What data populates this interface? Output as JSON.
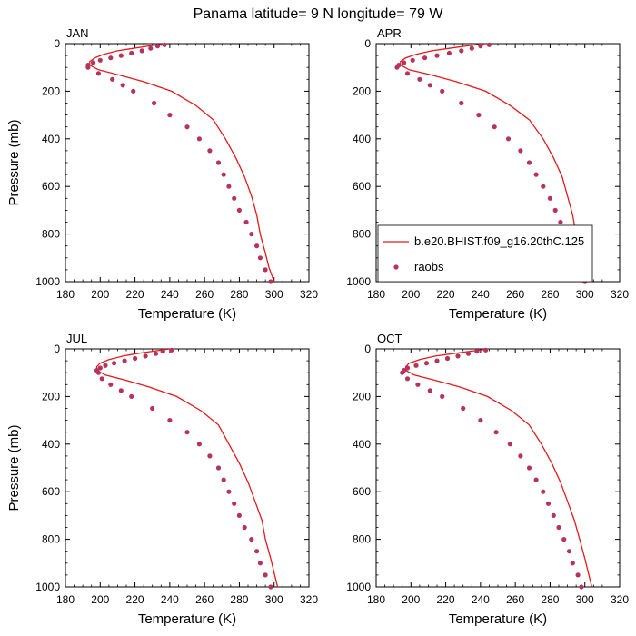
{
  "figure_title": "Panama  latitude= 9 N longitude= 79 W",
  "colors": {
    "model": "#e31a1c",
    "obs": "#b5345f",
    "frame": "#000000"
  },
  "chart_data": [
    {
      "type": "line",
      "panel": "JAN",
      "title": "JAN",
      "xlabel": "Temperature (K)",
      "ylabel": "Pressure (mb)",
      "xlim": [
        180,
        320
      ],
      "ylim": [
        1000,
        0
      ],
      "xticks": [
        180,
        200,
        220,
        240,
        260,
        280,
        300,
        320
      ],
      "yticks": [
        0,
        200,
        400,
        600,
        800,
        1000
      ],
      "legend": null,
      "series": [
        {
          "name": "b.e20.BHIST.f09_g16.20thC.125",
          "style": "line",
          "points": [
            [
              238,
              0
            ],
            [
              228,
              10
            ],
            [
              219,
              20
            ],
            [
              210,
              30
            ],
            [
              202,
              45
            ],
            [
              197,
              60
            ],
            [
              194,
              75
            ],
            [
              194,
              90
            ],
            [
              199,
              110
            ],
            [
              210,
              130
            ],
            [
              225,
              160
            ],
            [
              241,
              200
            ],
            [
              255,
              260
            ],
            [
              265,
              320
            ],
            [
              272,
              400
            ],
            [
              278,
              480
            ],
            [
              283,
              560
            ],
            [
              287,
              640
            ],
            [
              290,
              720
            ],
            [
              292,
              800
            ],
            [
              295,
              880
            ],
            [
              297,
              940
            ],
            [
              300,
              1000
            ]
          ]
        },
        {
          "name": "raobs",
          "style": "markers",
          "points": [
            [
              237,
              5
            ],
            [
              233,
              10
            ],
            [
              229,
              20
            ],
            [
              224,
              30
            ],
            [
              218,
              40
            ],
            [
              212,
              50
            ],
            [
              206,
              60
            ],
            [
              200,
              70
            ],
            [
              196,
              80
            ],
            [
              193,
              90
            ],
            [
              193,
              100
            ],
            [
              199,
              125
            ],
            [
              207,
              150
            ],
            [
              213,
              175
            ],
            [
              219,
              200
            ],
            [
              231,
              250
            ],
            [
              240,
              300
            ],
            [
              250,
              350
            ],
            [
              257,
              400
            ],
            [
              263,
              450
            ],
            [
              268,
              500
            ],
            [
              271,
              550
            ],
            [
              274,
              600
            ],
            [
              277,
              650
            ],
            [
              280,
              700
            ],
            [
              284,
              750
            ],
            [
              287,
              800
            ],
            [
              290,
              850
            ],
            [
              292,
              900
            ],
            [
              295,
              950
            ],
            [
              298,
              1000
            ]
          ]
        }
      ]
    },
    {
      "type": "line",
      "panel": "APR",
      "title": "APR",
      "xlabel": "Temperature (K)",
      "ylabel": "",
      "xlim": [
        180,
        320
      ],
      "ylim": [
        1000,
        0
      ],
      "xticks": [
        180,
        200,
        220,
        240,
        260,
        280,
        300,
        320
      ],
      "yticks": [
        0,
        200,
        400,
        600,
        800,
        1000
      ],
      "legend": [
        {
          "label": "b.e20.BHIST.f09_g16.20thC.125",
          "style": "line"
        },
        {
          "label": "raobs",
          "style": "markers"
        }
      ],
      "series": [
        {
          "name": "b.e20.BHIST.f09_g16.20thC.125",
          "style": "line",
          "points": [
            [
              243,
              0
            ],
            [
              232,
              10
            ],
            [
              222,
              20
            ],
            [
              212,
              30
            ],
            [
              203,
              45
            ],
            [
              197,
              60
            ],
            [
              194,
              75
            ],
            [
              194,
              90
            ],
            [
              199,
              110
            ],
            [
              211,
              130
            ],
            [
              226,
              160
            ],
            [
              243,
              200
            ],
            [
              257,
              260
            ],
            [
              268,
              320
            ],
            [
              276,
              400
            ],
            [
              282,
              480
            ],
            [
              287,
              560
            ],
            [
              290,
              640
            ],
            [
              293,
              720
            ],
            [
              295,
              800
            ],
            [
              298,
              880
            ],
            [
              300,
              940
            ],
            [
              303,
              1000
            ]
          ]
        },
        {
          "name": "raobs",
          "style": "markers",
          "points": [
            [
              245,
              5
            ],
            [
              240,
              10
            ],
            [
              235,
              20
            ],
            [
              229,
              30
            ],
            [
              222,
              40
            ],
            [
              215,
              50
            ],
            [
              208,
              60
            ],
            [
              201,
              70
            ],
            [
              196,
              80
            ],
            [
              193,
              90
            ],
            [
              192,
              100
            ],
            [
              198,
              125
            ],
            [
              205,
              150
            ],
            [
              211,
              175
            ],
            [
              218,
              200
            ],
            [
              229,
              250
            ],
            [
              239,
              300
            ],
            [
              248,
              350
            ],
            [
              256,
              400
            ],
            [
              263,
              450
            ],
            [
              268,
              500
            ],
            [
              272,
              550
            ],
            [
              276,
              600
            ],
            [
              280,
              650
            ],
            [
              283,
              700
            ],
            [
              286,
              750
            ],
            [
              289,
              800
            ],
            [
              292,
              850
            ],
            [
              295,
              900
            ],
            [
              297,
              950
            ],
            [
              300,
              1000
            ]
          ]
        }
      ]
    },
    {
      "type": "line",
      "panel": "JUL",
      "title": "JUL",
      "xlabel": "Temperature (K)",
      "ylabel": "Pressure (mb)",
      "xlim": [
        180,
        320
      ],
      "ylim": [
        1000,
        0
      ],
      "xticks": [
        180,
        200,
        220,
        240,
        260,
        280,
        300,
        320
      ],
      "yticks": [
        0,
        200,
        400,
        600,
        800,
        1000
      ],
      "legend": null,
      "series": [
        {
          "name": "b.e20.BHIST.f09_g16.20thC.125",
          "style": "line",
          "points": [
            [
              240,
              0
            ],
            [
              230,
              10
            ],
            [
              221,
              20
            ],
            [
              213,
              30
            ],
            [
              205,
              45
            ],
            [
              200,
              60
            ],
            [
              198,
              75
            ],
            [
              198,
              90
            ],
            [
              203,
              110
            ],
            [
              214,
              130
            ],
            [
              228,
              160
            ],
            [
              244,
              200
            ],
            [
              258,
              260
            ],
            [
              268,
              320
            ],
            [
              274,
              400
            ],
            [
              280,
              480
            ],
            [
              285,
              560
            ],
            [
              289,
              640
            ],
            [
              293,
              720
            ],
            [
              295,
              800
            ],
            [
              298,
              880
            ],
            [
              300,
              940
            ],
            [
              302,
              1000
            ]
          ]
        },
        {
          "name": "raobs",
          "style": "markers",
          "points": [
            [
              241,
              5
            ],
            [
              236,
              10
            ],
            [
              232,
              20
            ],
            [
              226,
              30
            ],
            [
              220,
              40
            ],
            [
              214,
              50
            ],
            [
              208,
              60
            ],
            [
              203,
              70
            ],
            [
              200,
              80
            ],
            [
              198,
              90
            ],
            [
              199,
              100
            ],
            [
              201,
              125
            ],
            [
              206,
              150
            ],
            [
              212,
              175
            ],
            [
              218,
              200
            ],
            [
              230,
              250
            ],
            [
              240,
              300
            ],
            [
              250,
              350
            ],
            [
              257,
              400
            ],
            [
              263,
              450
            ],
            [
              268,
              500
            ],
            [
              271,
              550
            ],
            [
              274,
              600
            ],
            [
              277,
              650
            ],
            [
              280,
              700
            ],
            [
              283,
              750
            ],
            [
              287,
              800
            ],
            [
              290,
              850
            ],
            [
              292,
              900
            ],
            [
              295,
              950
            ],
            [
              298,
              1000
            ]
          ]
        }
      ]
    },
    {
      "type": "line",
      "panel": "OCT",
      "title": "OCT",
      "xlabel": "Temperature (K)",
      "ylabel": "",
      "xlim": [
        180,
        320
      ],
      "ylim": [
        1000,
        0
      ],
      "xticks": [
        180,
        200,
        220,
        240,
        260,
        280,
        300,
        320
      ],
      "yticks": [
        0,
        200,
        400,
        600,
        800,
        1000
      ],
      "legend": null,
      "series": [
        {
          "name": "b.e20.BHIST.f09_g16.20thC.125",
          "style": "line",
          "points": [
            [
              245,
              0
            ],
            [
              234,
              10
            ],
            [
              224,
              20
            ],
            [
              214,
              30
            ],
            [
              205,
              45
            ],
            [
              199,
              60
            ],
            [
              197,
              75
            ],
            [
              197,
              90
            ],
            [
              202,
              110
            ],
            [
              213,
              130
            ],
            [
              228,
              160
            ],
            [
              244,
              200
            ],
            [
              258,
              260
            ],
            [
              268,
              320
            ],
            [
              275,
              400
            ],
            [
              281,
              480
            ],
            [
              286,
              560
            ],
            [
              290,
              640
            ],
            [
              294,
              720
            ],
            [
              297,
              800
            ],
            [
              300,
              880
            ],
            [
              302,
              940
            ],
            [
              304,
              1000
            ]
          ]
        },
        {
          "name": "raobs",
          "style": "markers",
          "points": [
            [
              243,
              5
            ],
            [
              238,
              10
            ],
            [
              233,
              20
            ],
            [
              227,
              30
            ],
            [
              221,
              40
            ],
            [
              215,
              50
            ],
            [
              209,
              60
            ],
            [
              203,
              70
            ],
            [
              198,
              80
            ],
            [
              196,
              90
            ],
            [
              195,
              100
            ],
            [
              198,
              125
            ],
            [
              204,
              150
            ],
            [
              211,
              175
            ],
            [
              218,
              200
            ],
            [
              230,
              250
            ],
            [
              240,
              300
            ],
            [
              249,
              350
            ],
            [
              257,
              400
            ],
            [
              263,
              450
            ],
            [
              268,
              500
            ],
            [
              272,
              550
            ],
            [
              276,
              600
            ],
            [
              279,
              650
            ],
            [
              282,
              700
            ],
            [
              285,
              750
            ],
            [
              288,
              800
            ],
            [
              291,
              850
            ],
            [
              293,
              900
            ],
            [
              296,
              950
            ],
            [
              298,
              1000
            ]
          ]
        }
      ]
    }
  ]
}
